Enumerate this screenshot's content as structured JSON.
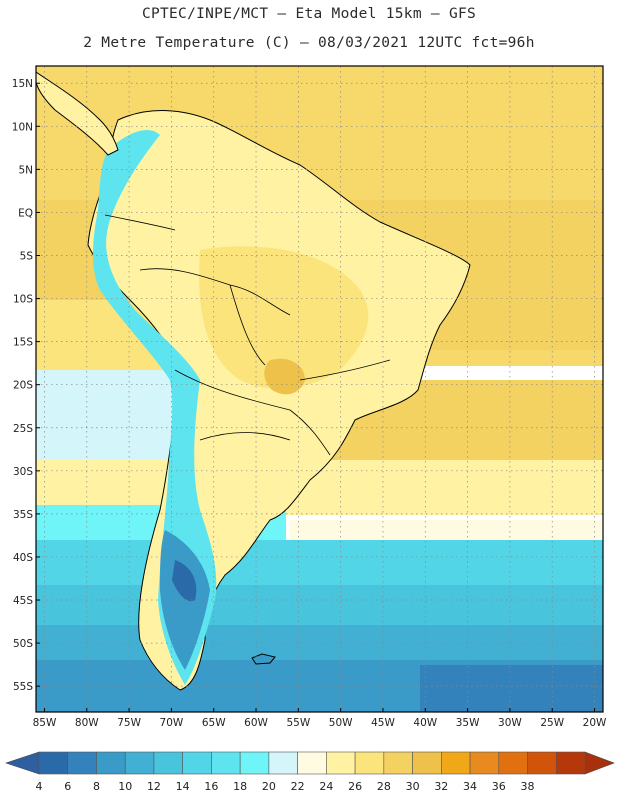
{
  "header": {
    "line1": "CPTEC/INPE/MCT –  Eta Model 15km – GFS",
    "line2": "2 Metre Temperature (C) – 08/03/2021 12UTC fct=96h"
  },
  "map": {
    "variable": "2 Metre Temperature",
    "units": "C",
    "lat_range": [
      -58,
      17
    ],
    "lon_range": [
      -86,
      -19
    ],
    "lat_labels": [
      "15N",
      "10N",
      "5N",
      "EQ",
      "5S",
      "10S",
      "15S",
      "20S",
      "25S",
      "30S",
      "35S",
      "40S",
      "45S",
      "50S",
      "55S"
    ],
    "lat_values": [
      15,
      10,
      5,
      0,
      -5,
      -10,
      -15,
      -20,
      -25,
      -30,
      -35,
      -40,
      -45,
      -50,
      -55
    ],
    "lon_labels": [
      "85W",
      "80W",
      "75W",
      "70W",
      "65W",
      "60W",
      "55W",
      "50W",
      "45W",
      "40W",
      "35W",
      "30W",
      "25W",
      "20W"
    ],
    "lon_values": [
      -85,
      -80,
      -75,
      -70,
      -65,
      -60,
      -55,
      -50,
      -45,
      -40,
      -35,
      -30,
      -25,
      -20
    ],
    "grid": true
  },
  "colorbar": {
    "labels": [
      "4",
      "6",
      "8",
      "10",
      "12",
      "14",
      "16",
      "18",
      "20",
      "22",
      "24",
      "26",
      "28",
      "30",
      "32",
      "34",
      "36",
      "38"
    ],
    "colors": [
      "#2b6aa8",
      "#3482bc",
      "#3a9ac8",
      "#41b0d3",
      "#49c4dd",
      "#52d5e6",
      "#5ee4ee",
      "#6ff4f7",
      "#d4f5fa",
      "#fffbe3",
      "#fff3a3",
      "#fbe47c",
      "#f4d262",
      "#eec14b",
      "#f0a818",
      "#e88a1e",
      "#e07010",
      "#d0540a",
      "#b4380a"
    ],
    "low_color": "#2e5fa0",
    "high_color": "#a8300c"
  }
}
